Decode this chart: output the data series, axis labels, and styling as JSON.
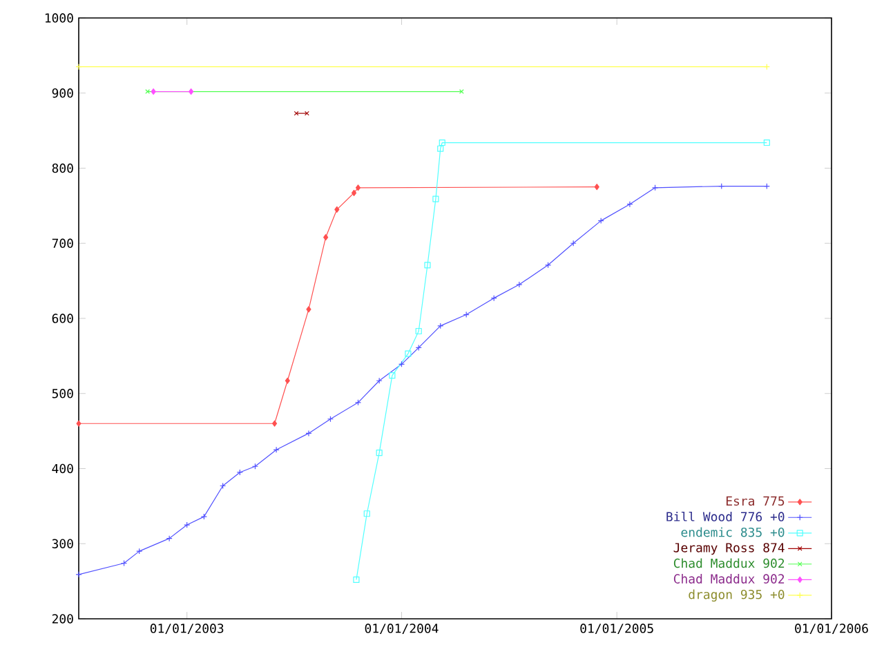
{
  "chart_data": {
    "type": "line",
    "xlim": [
      "2002-07-01",
      "2006-01-01"
    ],
    "ylim": [
      200,
      1000
    ],
    "xticks": [
      {
        "value": "2003-01-01",
        "label": "01/01/2003"
      },
      {
        "value": "2004-01-01",
        "label": "01/01/2004"
      },
      {
        "value": "2005-01-01",
        "label": "01/01/2005"
      },
      {
        "value": "2006-01-01",
        "label": "01/01/2006"
      }
    ],
    "yticks": [
      200,
      300,
      400,
      500,
      600,
      700,
      800,
      900,
      1000
    ],
    "grid": false,
    "legend": "bottom right",
    "line_style": "solid",
    "series": [
      {
        "name": "Esra 775",
        "color": "#ff5050",
        "marker": "diamond",
        "x": [
          "2002-07-01",
          "2003-05-30",
          "2003-06-21",
          "2003-07-27",
          "2003-08-25",
          "2003-09-13",
          "2003-10-12",
          "2003-10-19",
          "2004-11-28"
        ],
        "values": [
          460,
          460,
          517,
          612,
          708,
          745,
          767,
          774,
          775
        ]
      },
      {
        "name": "Bill Wood 776 +0",
        "color": "#5050ff",
        "marker": "plus",
        "x": [
          "2002-07-01",
          "2002-09-16",
          "2002-10-12",
          "2002-12-02",
          "2003-01-01",
          "2003-01-30",
          "2003-03-03",
          "2003-04-01",
          "2003-04-27",
          "2003-06-02",
          "2003-07-27",
          "2003-09-02",
          "2003-10-19",
          "2003-11-24",
          "2004-01-01",
          "2004-01-30",
          "2004-03-07",
          "2004-04-20",
          "2004-06-06",
          "2004-07-19",
          "2004-09-06",
          "2004-10-19",
          "2004-12-05",
          "2005-01-23",
          "2005-03-07",
          "2005-06-28",
          "2005-09-13"
        ],
        "values": [
          259,
          274,
          290,
          307,
          325,
          336,
          377,
          395,
          403,
          425,
          447,
          466,
          488,
          517,
          539,
          561,
          590,
          605,
          627,
          645,
          671,
          700,
          730,
          752,
          774,
          776,
          776
        ]
      },
      {
        "name": "endemic 835 +0",
        "color": "#50ffff",
        "marker": "square",
        "x": [
          "2003-10-16",
          "2003-11-03",
          "2003-11-24",
          "2003-12-16",
          "2004-01-12",
          "2004-01-30",
          "2004-02-14",
          "2004-02-28",
          "2004-03-07",
          "2004-03-10",
          "2005-09-13"
        ],
        "values": [
          252,
          340,
          421,
          524,
          553,
          583,
          671,
          759,
          826,
          834,
          834
        ]
      },
      {
        "name": "Jeramy Ross 874",
        "color": "#a00000",
        "marker": "cross",
        "x": [
          "2003-07-06",
          "2003-07-24"
        ],
        "values": [
          873,
          873
        ]
      },
      {
        "name": "Chad Maddux 902",
        "color": "#50ff50",
        "marker": "cross",
        "x": [
          "2002-10-26",
          "2004-04-12"
        ],
        "values": [
          902,
          902
        ]
      },
      {
        "name": "Chad Maddux 902",
        "color": "#ff50ff",
        "marker": "diamond",
        "x": [
          "2002-11-05",
          "2003-01-08"
        ],
        "values": [
          902,
          902
        ]
      },
      {
        "name": "dragon 935 +0",
        "color": "#ffff50",
        "marker": "plus",
        "x": [
          "2002-07-01",
          "2005-09-13"
        ],
        "values": [
          935,
          935
        ]
      }
    ]
  }
}
